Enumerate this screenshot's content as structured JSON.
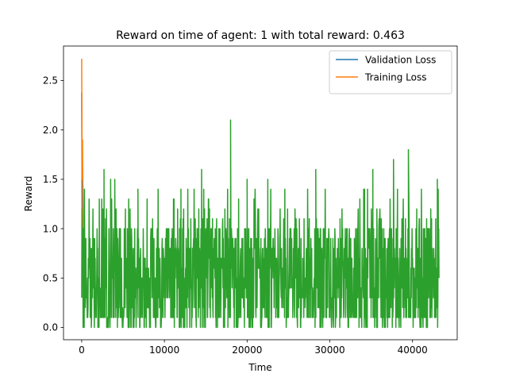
{
  "chart_data": {
    "type": "line",
    "title": "Reward on time of agent: 1 with total reward: 0.463",
    "xlabel": "Time",
    "ylabel": "Reward",
    "xlim": [
      -2200,
      45400
    ],
    "ylim": [
      -0.125,
      2.85
    ],
    "xticks": [
      0,
      10000,
      20000,
      30000,
      40000
    ],
    "xtick_labels": [
      "0",
      "10000",
      "20000",
      "30000",
      "40000"
    ],
    "yticks": [
      0.0,
      0.5,
      1.0,
      1.5,
      2.0,
      2.5
    ],
    "ytick_labels": [
      "0.0",
      "0.5",
      "1.0",
      "1.5",
      "2.0",
      "2.5"
    ],
    "grid": false,
    "legend_position": "top-right",
    "series": [
      {
        "name": "Validation Loss",
        "color": "#1f77b4",
        "x": [
          0,
          60,
          120,
          180,
          240,
          300
        ],
        "y": [
          2.38,
          0.9,
          1.6,
          1.1,
          0.5,
          0.3
        ]
      },
      {
        "name": "Training Loss",
        "color": "#ff7f0e",
        "x": [
          0,
          50,
          100,
          150,
          200,
          300
        ],
        "y": [
          2.72,
          1.5,
          1.9,
          1.2,
          0.6,
          0.4
        ]
      },
      {
        "name": "",
        "color": "#2ca02c",
        "x_range": [
          0,
          43200
        ],
        "y_range": [
          0.0,
          1.5
        ],
        "samples": 1300,
        "y_levels": [
          0.0,
          0.1,
          0.2,
          0.3,
          0.4,
          0.5,
          0.6,
          0.7,
          0.8,
          0.9,
          1.0,
          1.1,
          1.2
        ],
        "spikes": [
          {
            "x": 2700,
            "y": 1.6
          },
          {
            "x": 3500,
            "y": 1.5
          },
          {
            "x": 4000,
            "y": 1.5
          },
          {
            "x": 6800,
            "y": 1.4
          },
          {
            "x": 12000,
            "y": 1.4
          },
          {
            "x": 14500,
            "y": 1.6
          },
          {
            "x": 18000,
            "y": 2.1
          },
          {
            "x": 20000,
            "y": 1.5
          },
          {
            "x": 22500,
            "y": 1.5
          },
          {
            "x": 28300,
            "y": 1.6
          },
          {
            "x": 35200,
            "y": 1.6
          },
          {
            "x": 37700,
            "y": 1.7
          },
          {
            "x": 39500,
            "y": 1.8
          },
          {
            "x": 43000,
            "y": 1.5
          }
        ]
      }
    ]
  }
}
